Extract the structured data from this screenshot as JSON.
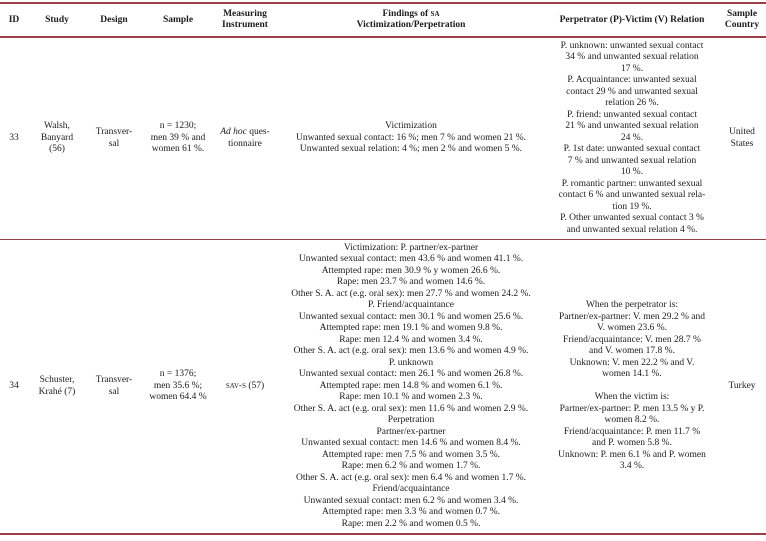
{
  "colors": {
    "rule": "#9a3e48",
    "text": "#1c1c1c",
    "background": "#ffffff"
  },
  "header": {
    "id": "ID",
    "study": "Study",
    "design": "Design",
    "sample": "Sample",
    "instrument": [
      "Measuring",
      "Instrument"
    ],
    "findings": {
      "pre": "Findings of ",
      "sc": "sa",
      "line2": "Victimization/Perpetration"
    },
    "relation": "Perpetrator (P)-Victim (V) Relation",
    "country": [
      "Sample",
      "Country"
    ]
  },
  "rows": [
    {
      "id": "33",
      "study": [
        "Walsh,",
        "Banyard",
        "(56)"
      ],
      "design": [
        "Transver-",
        "sal"
      ],
      "sample": [
        "n = 1230;",
        "men 39 % and",
        "women 61 %."
      ],
      "instrument": {
        "italic": "Ad hoc",
        "rest": " ques-",
        "line2": "tionnaire"
      },
      "findings": [
        "Victimization",
        "Unwanted sexual contact: 16 %; men 7 % and women 21 %.",
        "Unwanted sexual relation: 4 %; men 2 % and women 5 %."
      ],
      "relation": [
        "P. unknown: unwanted sexual contact",
        "34 % and unwanted sexual relation",
        "17 %.",
        "P. Acquaintance: unwanted sexual",
        "contact 29 % and unwanted sexual",
        "relation 26 %.",
        "P. friend: unwanted sexual contact",
        "21 % and unwanted sexual relation",
        "24 %.",
        "P. 1st date: unwanted sexual contact",
        "7 % and unwanted sexual relation",
        "10 %.",
        "P. romantic partner: unwanted sexual",
        "contact 6 % and unwanted sexual rela-",
        "tion 19 %.",
        "P. Other unwanted sexual contact 3 %",
        "and unwanted sexual relation 4 %."
      ],
      "country": [
        "United",
        "States"
      ]
    },
    {
      "id": "34",
      "study": [
        "Schuster,",
        "Krahé (7)"
      ],
      "design": [
        "Transver-",
        "sal"
      ],
      "sample": [
        "n = 1376;",
        "men 35.6 %;",
        "women 64.4 %"
      ],
      "instrument": {
        "smallcaps": "sav-s (57)"
      },
      "findings": [
        "Victimization: P. partner/ex-partner",
        "Unwanted sexual contact: men 43.6 % and women 41.1 %.",
        "Attempted rape: men 30.9 % y women 26.6 %.",
        "Rape: men 23.7 % and women 14.6 %.",
        "Other S. A. act (e.g. oral sex): men 27.7 % and women 24.2 %.",
        "P. Friend/acquaintance",
        "Unwanted sexual contact: men 30.1 % and women 25.6 %.",
        "Attempted rape: men 19.1 % and women 9.8 %.",
        "Rape: men 12.4 % and women 3.4 %.",
        "Other S. A. act (e.g. oral sex): men 13.6 % and women 4.9 %.",
        "P. unknown",
        "Unwanted sexual contact: men 26.1 % and women 26.8 %.",
        "Attempted rape: men 14.8 % and women 6.1 %.",
        "Rape: men 10.1 % and women 2.3 %.",
        "Other S. A. act (e.g. oral sex): men 11.6 % and women 2.9 %.",
        "Perpetration",
        "Partner/ex-partner",
        "Unwanted sexual contact: men 14.6 % and women 8.4 %.",
        "Attempted rape: men 7.5 % and women 3.5 %.",
        "Rape: men 6.2 % and women 1.7 %.",
        "Other S. A. act (e.g. oral sex): men 6.4 % and women 1.7 %.",
        "Friend/acquaintance",
        "Unwanted sexual contact: men 6.2 % and women 3.4 %.",
        "Attempted rape: men 3.3 % and women 0.7 %.",
        "Rape: men 2.2 % and women 0.5 %."
      ],
      "relation": [
        "When the perpetrator is:",
        "Partner/ex-partner: V. men 29.2 % and",
        "V. women 23.6 %.",
        "Friend/acquaintance: V. men 28.7 %",
        "and V. women 17.8 %.",
        "Unknown: V. men 22.2 % and V.",
        "women 14.1 %.",
        "",
        "When the victim is:",
        "Partner/ex-partner: P. men 13.5 % y P.",
        "women 8.2 %.",
        "Friend/acquaintance: P. men 11.7 %",
        "and P. women 5.8 %.",
        "Unknown: P. men 6.1 % and P. women",
        "3.4 %."
      ],
      "country": [
        "Turkey"
      ]
    }
  ]
}
